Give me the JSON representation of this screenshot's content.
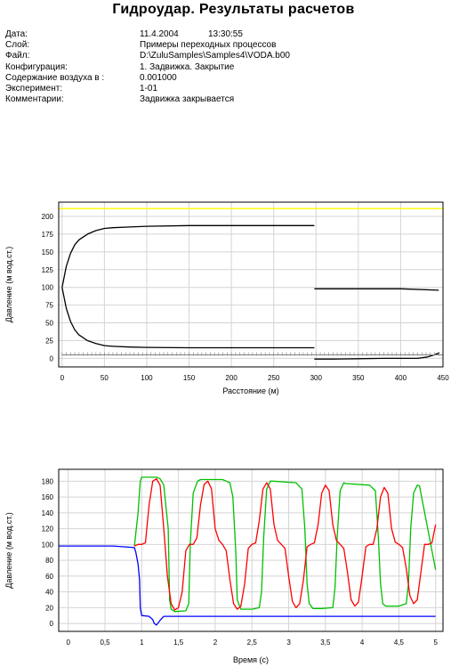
{
  "report": {
    "title": "Гидроудар. Результаты расчетов",
    "info": [
      {
        "label": "Дата:",
        "value": "11.4.2004",
        "extra": "13:30:55"
      },
      {
        "label": "Слой:",
        "value": "Примеры переходных процессов"
      },
      {
        "label": "Файл:",
        "value": "D:\\ZuluSamples\\Samples4\\VODA.b00"
      },
      {
        "label": "Конфигурация:",
        "value": "1. Задвижка. Закрытие"
      },
      {
        "label": "Содержание воздуха в :",
        "value": "0.001000"
      },
      {
        "label": "Эксперимент:",
        "value": "1-01"
      },
      {
        "label": "Комментарии:",
        "value": "Задвижка закрывается"
      }
    ]
  },
  "chart_data": [
    {
      "type": "line",
      "xlabel": "Расстояние (м)",
      "ylabel": "Давление (м вод.ст.)",
      "xlim": [
        -4,
        450
      ],
      "ylim": [
        -12,
        220
      ],
      "xticks": [
        0,
        50,
        100,
        150,
        200,
        250,
        300,
        350,
        400,
        450
      ],
      "yticks": [
        0,
        25,
        50,
        75,
        100,
        125,
        150,
        175,
        200
      ],
      "grid": true,
      "legend": "none",
      "series": [
        {
          "color": "#ffff00",
          "x": [
            -4,
            450
          ],
          "y": [
            211,
            211
          ]
        },
        {
          "color": "#000000",
          "x": [
            0,
            5,
            10,
            15,
            20,
            30,
            40,
            50,
            60,
            80,
            100,
            150,
            200,
            250,
            298
          ],
          "y": [
            100,
            130,
            148,
            160,
            167,
            175,
            180,
            183,
            184,
            185,
            186,
            187,
            187,
            187,
            187
          ]
        },
        {
          "color": "#000000",
          "x": [
            0,
            5,
            10,
            15,
            20,
            30,
            40,
            50,
            60,
            80,
            100,
            150,
            200,
            250,
            298
          ],
          "y": [
            100,
            70,
            52,
            40,
            33,
            25,
            21,
            18,
            17,
            16,
            15.5,
            15,
            15,
            15,
            15
          ]
        },
        {
          "color": "#000000",
          "x": [
            298,
            350,
            400,
            445
          ],
          "y": [
            98,
            98,
            98,
            96
          ]
        },
        {
          "color": "#000000",
          "x": [
            298,
            320,
            350,
            380,
            420,
            432,
            440,
            446
          ],
          "y": [
            -1,
            -1,
            -0.5,
            0,
            0,
            2,
            5,
            8
          ]
        },
        {
          "color": "#808080",
          "style": "hatched",
          "x": [
            0,
            450
          ],
          "y": [
            5,
            5
          ]
        }
      ]
    },
    {
      "type": "line",
      "xlabel": "Время (с)",
      "ylabel": "Давление (м вод.ст.)",
      "xlim": [
        -0.13,
        5.1
      ],
      "ylim": [
        -10,
        195
      ],
      "xticks": [
        0,
        0.5,
        1,
        1.5,
        2,
        2.5,
        3,
        3.5,
        4,
        4.5,
        5
      ],
      "yticks": [
        0,
        20,
        40,
        60,
        80,
        100,
        120,
        140,
        160,
        180
      ],
      "grid": true,
      "legend": "none",
      "series": [
        {
          "color": "#0000ff",
          "x": [
            -0.13,
            0.6,
            0.9,
            0.92,
            0.95,
            0.97,
            0.98,
            1.0,
            1.1,
            1.15,
            1.17,
            1.2,
            1.25,
            1.3,
            2,
            3,
            4,
            5
          ],
          "y": [
            98,
            98,
            96,
            90,
            75,
            55,
            20,
            10,
            9,
            5,
            0,
            -2,
            4,
            9,
            9,
            9,
            9,
            9
          ]
        },
        {
          "color": "#00c000",
          "x": [
            0.9,
            0.95,
            0.98,
            1.0,
            1.2,
            1.25,
            1.3,
            1.36,
            1.38,
            1.4,
            1.45,
            1.6,
            1.64,
            1.66,
            1.7,
            1.76,
            1.8,
            2.1,
            2.2,
            2.24,
            2.28,
            2.3,
            2.35,
            2.5,
            2.6,
            2.63,
            2.66,
            2.7,
            2.75,
            2.78,
            3.1,
            3.18,
            3.22,
            3.25,
            3.28,
            3.33,
            3.45,
            3.6,
            3.63,
            3.66,
            3.7,
            3.75,
            3.77,
            4.1,
            4.18,
            4.22,
            4.25,
            4.28,
            4.32,
            4.5,
            4.6,
            4.63,
            4.66,
            4.7,
            4.75,
            4.78,
            5.0
          ],
          "y": [
            98,
            140,
            180,
            185,
            185,
            183,
            175,
            120,
            30,
            18,
            15,
            16,
            25,
            100,
            165,
            180,
            182,
            182,
            178,
            160,
            90,
            30,
            18,
            18,
            20,
            40,
            110,
            170,
            180,
            180,
            178,
            170,
            120,
            50,
            25,
            19,
            19,
            20,
            45,
            110,
            168,
            178,
            177,
            175,
            168,
            110,
            50,
            25,
            22,
            22,
            25,
            50,
            120,
            165,
            175,
            174,
            68
          ]
        },
        {
          "color": "#ff0000",
          "x": [
            0.9,
            0.95,
            1.0,
            1.05,
            1.1,
            1.15,
            1.2,
            1.25,
            1.3,
            1.35,
            1.4,
            1.45,
            1.5,
            1.55,
            1.6,
            1.65,
            1.7,
            1.75,
            1.8,
            1.85,
            1.9,
            1.95,
            2.0,
            2.05,
            2.1,
            2.15,
            2.2,
            2.25,
            2.3,
            2.35,
            2.4,
            2.45,
            2.5,
            2.55,
            2.6,
            2.65,
            2.7,
            2.75,
            2.8,
            2.85,
            2.9,
            2.95,
            3.0,
            3.05,
            3.1,
            3.15,
            3.2,
            3.25,
            3.3,
            3.35,
            3.4,
            3.45,
            3.5,
            3.55,
            3.6,
            3.65,
            3.7,
            3.75,
            3.8,
            3.85,
            3.9,
            3.95,
            4.0,
            4.05,
            4.1,
            4.15,
            4.2,
            4.25,
            4.3,
            4.35,
            4.4,
            4.45,
            4.5,
            4.55,
            4.6,
            4.65,
            4.7,
            4.75,
            4.8,
            4.85,
            4.9,
            4.95,
            5.0
          ],
          "y": [
            98,
            100,
            100,
            102,
            150,
            180,
            183,
            175,
            120,
            60,
            25,
            17,
            20,
            40,
            92,
            100,
            100,
            108,
            150,
            176,
            180,
            170,
            120,
            105,
            100,
            92,
            55,
            25,
            18,
            22,
            50,
            95,
            100,
            102,
            130,
            170,
            178,
            170,
            125,
            105,
            100,
            95,
            60,
            28,
            20,
            25,
            55,
            97,
            100,
            102,
            125,
            165,
            175,
            168,
            125,
            105,
            100,
            95,
            65,
            30,
            22,
            27,
            60,
            97,
            100,
            100,
            120,
            160,
            172,
            165,
            120,
            103,
            100,
            96,
            70,
            35,
            25,
            30,
            65,
            100,
            100,
            102,
            125
          ]
        }
      ]
    }
  ]
}
